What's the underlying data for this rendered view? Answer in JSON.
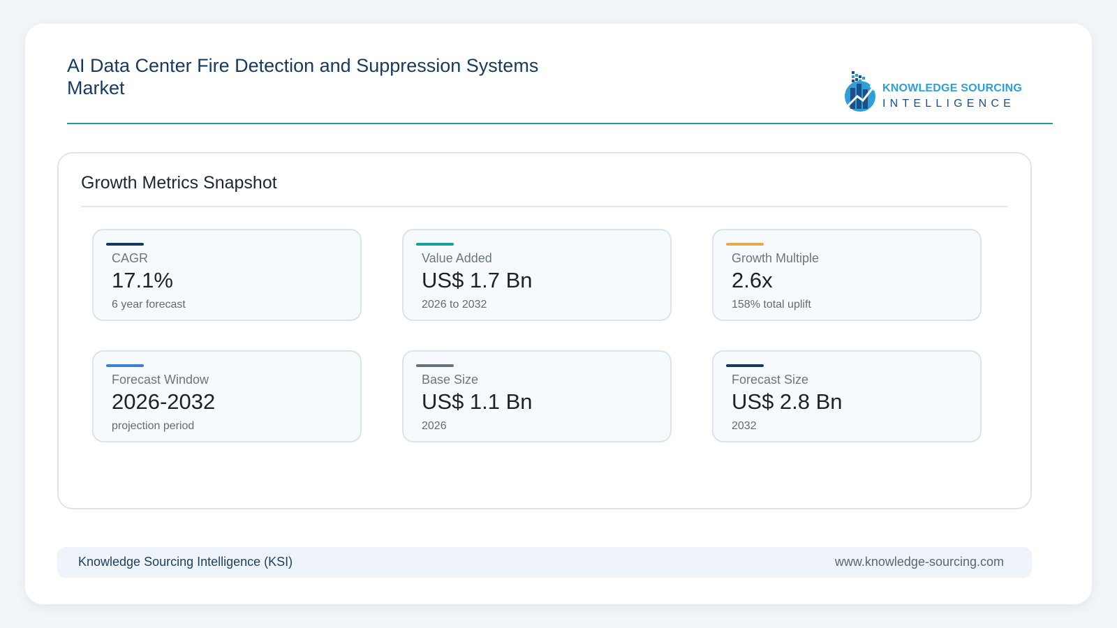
{
  "header": {
    "title": "AI Data Center Fire Detection and Suppression Systems Market"
  },
  "logo": {
    "line1": "KNOWLEDGE SOURCING",
    "line2": "INTELLIGENCE",
    "icon": "building-chart-logo-icon"
  },
  "panel": {
    "title": "Growth Metrics Snapshot",
    "metrics": [
      {
        "label": "CAGR",
        "value": "17.1%",
        "note": "6 year forecast",
        "accent": "#163a5f"
      },
      {
        "label": "Value Added",
        "value": "US$ 1.7 Bn",
        "note": "2026 to 2032",
        "accent": "#13a39a"
      },
      {
        "label": "Growth Multiple",
        "value": "2.6x",
        "note": "158% total uplift",
        "accent": "#e8a94a"
      },
      {
        "label": "Forecast Window",
        "value": "2026-2032",
        "note": "projection period",
        "accent": "#3a7fd8"
      },
      {
        "label": "Base Size",
        "value": "US$ 1.1 Bn",
        "note": "2026",
        "accent": "#66727e"
      },
      {
        "label": "Forecast Size",
        "value": "US$ 2.8 Bn",
        "note": "2032",
        "accent": "#163a5f"
      }
    ]
  },
  "footer": {
    "left": "Knowledge Sourcing Intelligence (KSI)",
    "right": "www.knowledge-sourcing.com"
  }
}
